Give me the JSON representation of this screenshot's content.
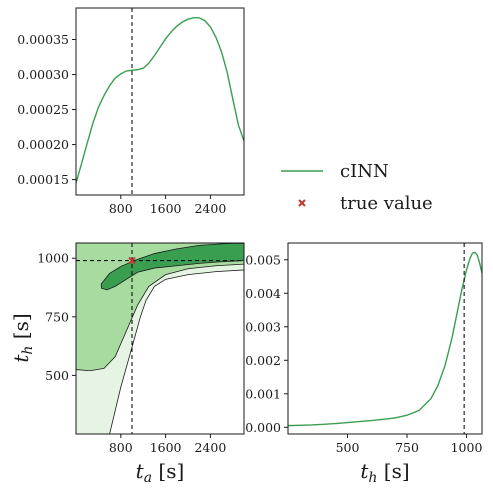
{
  "chart_data": [
    {
      "type": "line",
      "panel": "ta-marginal",
      "x_ticks": [
        "800",
        "1600",
        "2400"
      ],
      "x_tick_values": [
        800,
        1600,
        2400
      ],
      "y_ticks": [
        "0.00015",
        "0.00020",
        "0.00025",
        "0.00030",
        "0.00035"
      ],
      "y_tick_values": [
        0.00015,
        0.0002,
        0.00025,
        0.0003,
        0.00035
      ],
      "xlim": [
        0,
        3000
      ],
      "ylim": [
        0.000128,
        0.000395
      ],
      "true_value": 1000,
      "series": [
        {
          "name": "cINN",
          "color": "#3a9e50",
          "x": [
            0,
            100,
            200,
            300,
            400,
            500,
            600,
            700,
            800,
            900,
            1000,
            1100,
            1200,
            1300,
            1400,
            1500,
            1600,
            1700,
            1800,
            1900,
            2000,
            2100,
            2200,
            2300,
            2400,
            2500,
            2600,
            2700,
            2800,
            2900,
            3000
          ],
          "y": [
            0.000145,
            0.000173,
            0.000202,
            0.00023,
            0.000253,
            0.00027,
            0.000284,
            0.000295,
            0.000301,
            0.000305,
            0.000306,
            0.000307,
            0.000309,
            0.000316,
            0.000327,
            0.000339,
            0.000351,
            0.000361,
            0.000369,
            0.000375,
            0.000379,
            0.000381,
            0.000381,
            0.000377,
            0.000368,
            0.000353,
            0.000332,
            0.000303,
            0.000265,
            0.000228,
            0.000205
          ]
        }
      ]
    },
    {
      "type": "area",
      "panel": "joint-contour",
      "xlabel": "t_a [s]",
      "ylabel": "t_h [s]",
      "x_ticks": [
        "800",
        "1600",
        "2400"
      ],
      "x_tick_values": [
        800,
        1600,
        2400
      ],
      "y_ticks": [
        "500",
        "750",
        "1000"
      ],
      "y_tick_values": [
        500,
        750,
        1000
      ],
      "xlim": [
        0,
        3000
      ],
      "ylim": [
        250,
        1065
      ],
      "true_value": {
        "x": 1000,
        "y": 990
      },
      "levels": [
        {
          "level": "outer",
          "fill": "#e6f5e3",
          "polygon": [
            [
              0,
              1065
            ],
            [
              3000,
              1065
            ],
            [
              3000,
              950
            ],
            [
              2500,
              943
            ],
            [
              2000,
              930
            ],
            [
              1600,
              910
            ],
            [
              1400,
              880
            ],
            [
              1250,
              820
            ],
            [
              1150,
              750
            ],
            [
              1000,
              620
            ],
            [
              800,
              450
            ],
            [
              600,
              250
            ],
            [
              0,
              250
            ]
          ]
        },
        {
          "level": "middle",
          "fill": "#a8dba0",
          "polygon": [
            [
              0,
              1065
            ],
            [
              3000,
              1065
            ],
            [
              3000,
              975
            ],
            [
              2500,
              968
            ],
            [
              2000,
              955
            ],
            [
              1600,
              930
            ],
            [
              1300,
              880
            ],
            [
              1100,
              800
            ],
            [
              900,
              690
            ],
            [
              700,
              580
            ],
            [
              500,
              530
            ],
            [
              250,
              520
            ],
            [
              0,
              525
            ]
          ]
        },
        {
          "level": "inner",
          "fill": "#3a9e50",
          "polygon": [
            [
              450,
              890
            ],
            [
              600,
              935
            ],
            [
              800,
              965
            ],
            [
              1100,
              995
            ],
            [
              1400,
              1020
            ],
            [
              1800,
              1040
            ],
            [
              2200,
              1055
            ],
            [
              2700,
              1063
            ],
            [
              3000,
              1064
            ],
            [
              3000,
              990
            ],
            [
              2600,
              985
            ],
            [
              2200,
              978
            ],
            [
              1800,
              968
            ],
            [
              1400,
              958
            ],
            [
              1100,
              940
            ],
            [
              900,
              910
            ],
            [
              700,
              880
            ],
            [
              550,
              865
            ],
            [
              455,
              872
            ]
          ]
        }
      ]
    },
    {
      "type": "line",
      "panel": "th-marginal",
      "xlabel": "t_h [s]",
      "x_ticks": [
        "500",
        "750",
        "1000"
      ],
      "x_tick_values": [
        500,
        750,
        1000
      ],
      "y_ticks": [
        "0.000",
        "0.001",
        "0.002",
        "0.003",
        "0.004",
        "0.005"
      ],
      "y_tick_values": [
        0,
        0.001,
        0.002,
        0.003,
        0.004,
        0.005
      ],
      "xlim": [
        250,
        1065
      ],
      "ylim": [
        -0.0002,
        0.0055
      ],
      "true_value": 990,
      "series": [
        {
          "name": "cINN",
          "color": "#3a9e50",
          "x": [
            250,
            300,
            350,
            400,
            450,
            500,
            550,
            600,
            650,
            700,
            750,
            800,
            850,
            880,
            910,
            940,
            960,
            980,
            1000,
            1015,
            1025,
            1035,
            1045,
            1055,
            1065
          ],
          "y": [
            5e-05,
            6e-05,
            7e-05,
            9e-05,
            0.00011,
            0.00014,
            0.00017,
            0.0002,
            0.00024,
            0.00028,
            0.00036,
            0.0005,
            0.00085,
            0.00125,
            0.00185,
            0.0027,
            0.0034,
            0.0041,
            0.0047,
            0.00505,
            0.0052,
            0.00522,
            0.00515,
            0.0049,
            0.0046
          ]
        }
      ]
    }
  ],
  "legend": {
    "items": [
      {
        "label": "cINN",
        "type": "line",
        "color": "#3a9e50"
      },
      {
        "label": "true value",
        "type": "marker",
        "color": "#c0392b"
      }
    ]
  }
}
